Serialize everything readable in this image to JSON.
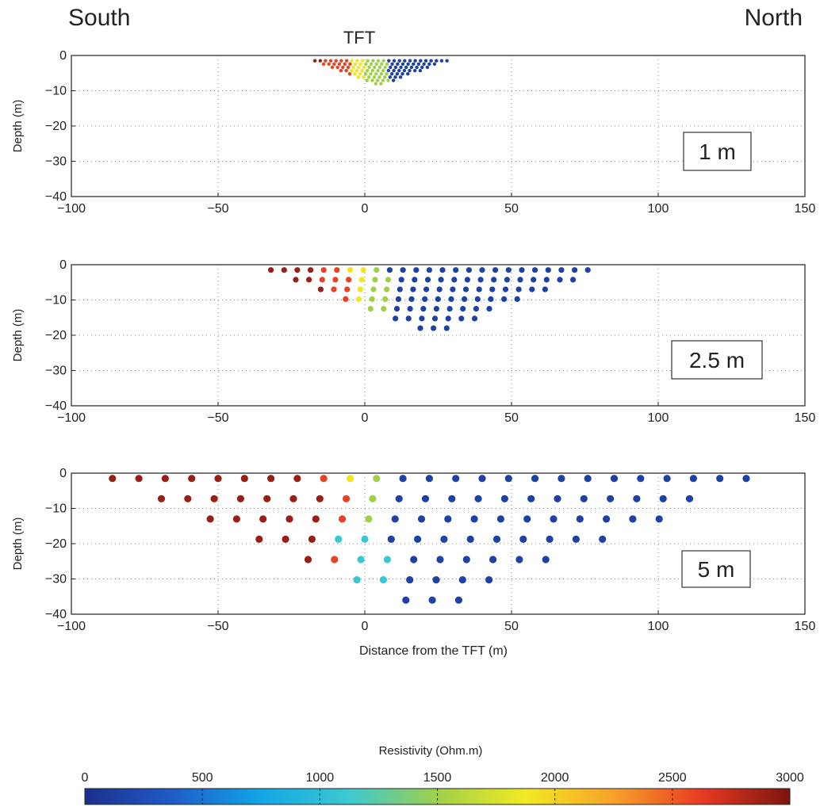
{
  "header": {
    "south_label": "South",
    "north_label": "North"
  },
  "chart_data": {
    "type": "scatter",
    "panels": [
      {
        "spacing_label": "1 m",
        "top_label": "TFT",
        "electrode_spacing_m": 1,
        "profile_start_m": -17,
        "profile_end_m": 28,
        "max_depth_m": -8,
        "ylabel": "Depth (m)",
        "xlim": [
          -100,
          150
        ],
        "ylim": [
          -40,
          0
        ],
        "xticks": [
          -100,
          -50,
          0,
          50,
          100,
          150
        ],
        "yticks": [
          0,
          -10,
          -20,
          -30,
          -40
        ],
        "grid": true
      },
      {
        "spacing_label": "2.5 m",
        "electrode_spacing_m": 2.5,
        "profile_start_m": -32,
        "profile_end_m": 80,
        "max_depth_m": -18,
        "ylabel": "Depth (m)",
        "xlim": [
          -100,
          150
        ],
        "ylim": [
          -40,
          0
        ],
        "xticks": [
          -100,
          -50,
          0,
          50,
          100,
          150
        ],
        "yticks": [
          0,
          -10,
          -20,
          -30,
          -40
        ],
        "grid": true
      },
      {
        "spacing_label": "5 m",
        "electrode_spacing_m": 5,
        "profile_start_m": -86,
        "profile_end_m": 134,
        "max_depth_m": -36,
        "ylabel": "Depth (m)",
        "xlabel": "Distance from the TFT (m)",
        "xlim": [
          -100,
          150
        ],
        "ylim": [
          -40,
          0
        ],
        "xticks": [
          -100,
          -50,
          0,
          50,
          100,
          150
        ],
        "yticks": [
          0,
          -10,
          -20,
          -30,
          -40
        ],
        "grid": true
      }
    ],
    "resistivity_by_distance": [
      {
        "x_max": -15,
        "ohm_m": 2900
      },
      {
        "x_max": -5,
        "ohm_m": 2600
      },
      {
        "x_max": 0,
        "ohm_m": 1900
      },
      {
        "x_max": 8,
        "ohm_m": 1500
      },
      {
        "x_max": 150,
        "ohm_m": 150
      }
    ],
    "resistivity_at_depth": {
      "below_depth_m": -14,
      "ohm_m": 1100
    },
    "colorbar": {
      "label": "Resistivity (Ohm.m)",
      "min": 0,
      "max": 3000,
      "ticks": [
        0,
        500,
        1000,
        1500,
        2000,
        2500,
        3000
      ],
      "colors": [
        "#1c2f8c",
        "#1f5cc8",
        "#12a6e6",
        "#3cc9d1",
        "#9fd04a",
        "#f2ea22",
        "#f8a12a",
        "#e83a22",
        "#7c1410"
      ]
    }
  }
}
